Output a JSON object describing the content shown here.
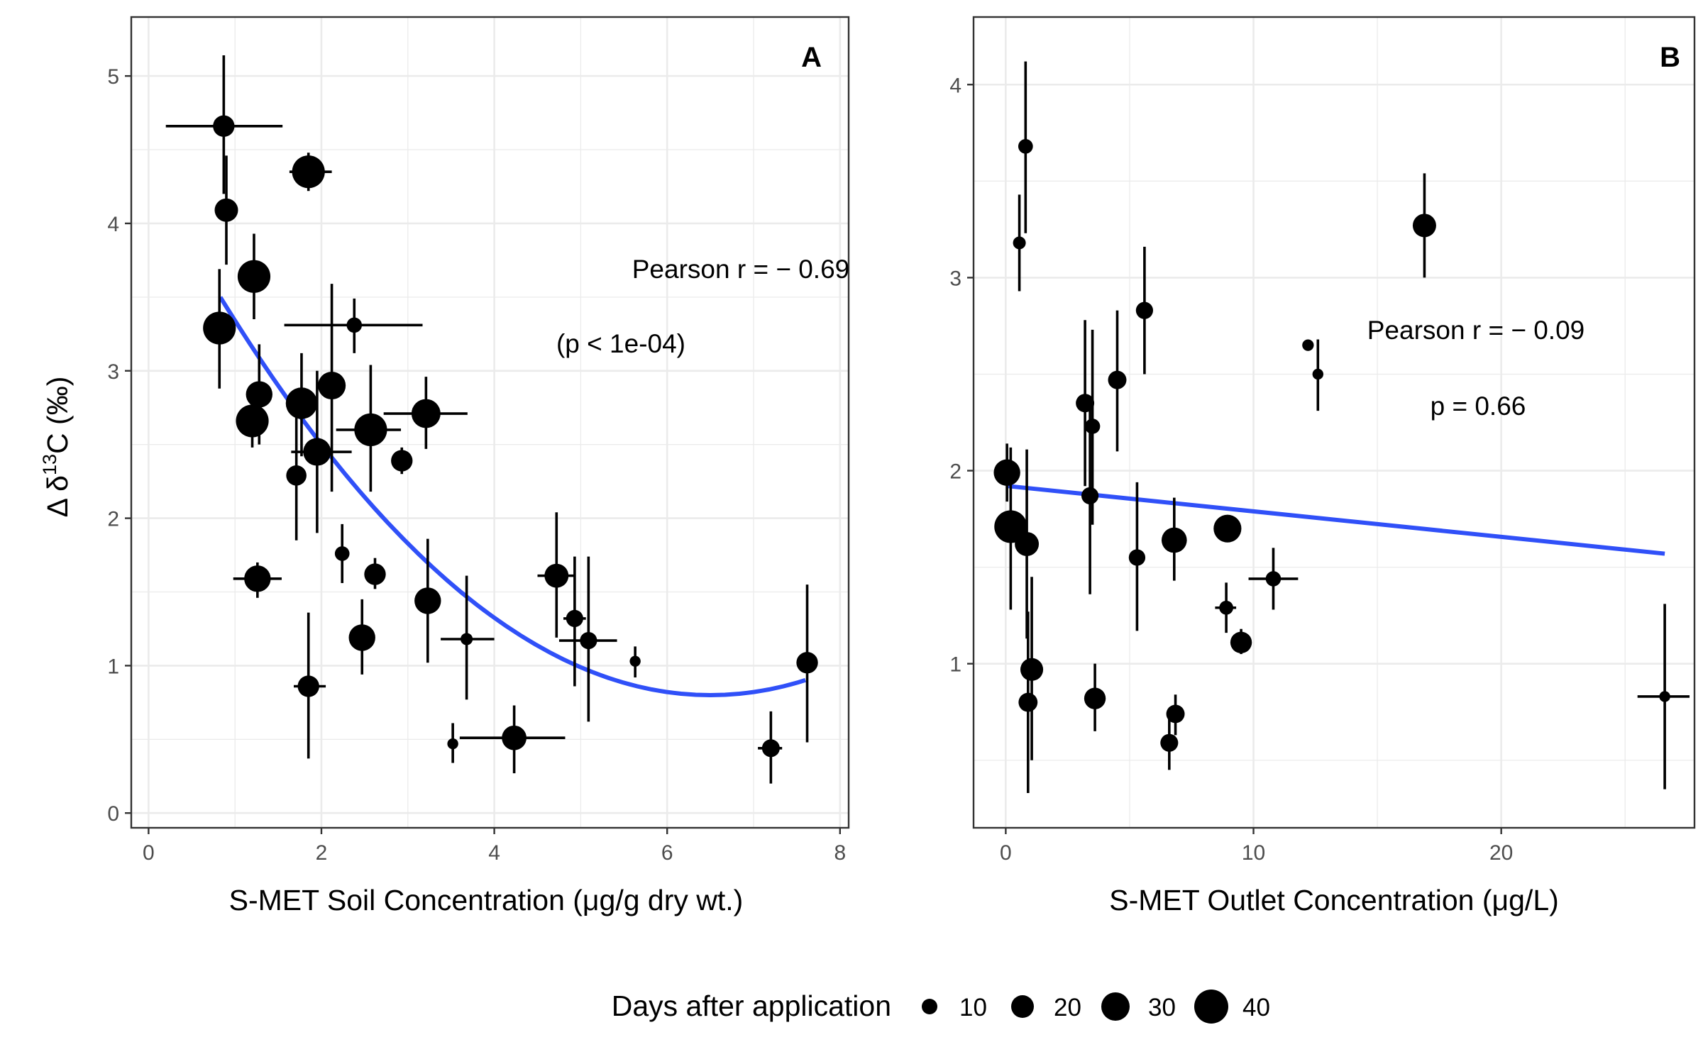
{
  "chart_data": [
    {
      "type": "scatter",
      "panel_tag": "A",
      "xlabel": "S-MET Soil Concentration  (μg/g dry wt.)",
      "ylabel_delta": "Δ δ",
      "ylabel_sup": "13",
      "ylabel_rest": "C (‰)",
      "xlim": [
        -0.2,
        8.1
      ],
      "ylim": [
        -0.1,
        5.4
      ],
      "xticks": [
        0,
        2,
        4,
        6,
        8
      ],
      "yticks": [
        0,
        1,
        2,
        3,
        4,
        5
      ],
      "xtick_labels": [
        "0",
        "2",
        "4",
        "6",
        "8"
      ],
      "ytick_labels": [
        "0",
        "1",
        "2",
        "3",
        "4",
        "5"
      ],
      "annotation_line1": "Pearson r = − 0.69",
      "annotation_line2": "(p < 1e-04)",
      "grid": true,
      "fit_color": "#3050f8",
      "fit": {
        "kind": "quadratic",
        "x_from": 0.83,
        "x_to": 7.6,
        "points": [
          [
            0.83,
            3.5
          ],
          [
            2.7,
            2.42
          ],
          [
            6.5,
            0.8
          ]
        ]
      },
      "points": [
        {
          "x": 0.87,
          "y": 4.66,
          "days": 22,
          "xerr": [
            0.2,
            1.55
          ],
          "yerr": [
            4.2,
            5.14
          ]
        },
        {
          "x": 1.85,
          "y": 4.35,
          "days": 40,
          "xerr": [
            1.63,
            2.12
          ],
          "yerr": [
            4.22,
            4.48
          ]
        },
        {
          "x": 0.9,
          "y": 4.09,
          "days": 25,
          "xerr": null,
          "yerr": [
            3.72,
            4.46
          ]
        },
        {
          "x": 1.22,
          "y": 3.64,
          "days": 40,
          "xerr": null,
          "yerr": [
            3.35,
            3.93
          ]
        },
        {
          "x": 0.82,
          "y": 3.29,
          "days": 40,
          "xerr": null,
          "yerr": [
            2.88,
            3.69
          ]
        },
        {
          "x": 2.38,
          "y": 3.31,
          "days": 12,
          "xerr": [
            1.57,
            3.17
          ],
          "yerr": [
            3.12,
            3.49
          ]
        },
        {
          "x": 1.28,
          "y": 2.84,
          "days": 30,
          "xerr": null,
          "yerr": [
            2.5,
            3.18
          ]
        },
        {
          "x": 2.12,
          "y": 2.9,
          "days": 32,
          "xerr": null,
          "yerr": [
            2.18,
            3.59
          ]
        },
        {
          "x": 1.77,
          "y": 2.78,
          "days": 38,
          "xerr": null,
          "yerr": [
            2.42,
            3.12
          ]
        },
        {
          "x": 1.2,
          "y": 2.66,
          "days": 40,
          "xerr": null,
          "yerr": [
            2.48,
            2.84
          ]
        },
        {
          "x": 1.95,
          "y": 2.45,
          "days": 32,
          "xerr": [
            1.65,
            2.35
          ],
          "yerr": [
            1.9,
            3.0
          ]
        },
        {
          "x": 2.57,
          "y": 2.6,
          "days": 40,
          "xerr": [
            2.17,
            2.92
          ],
          "yerr": [
            2.18,
            3.04
          ]
        },
        {
          "x": 3.21,
          "y": 2.71,
          "days": 34,
          "xerr": [
            2.72,
            3.69
          ],
          "yerr": [
            2.47,
            2.96
          ]
        },
        {
          "x": 2.93,
          "y": 2.39,
          "days": 22,
          "xerr": null,
          "yerr": [
            2.3,
            2.48
          ]
        },
        {
          "x": 1.71,
          "y": 2.29,
          "days": 20,
          "xerr": null,
          "yerr": [
            1.85,
            2.74
          ]
        },
        {
          "x": 2.24,
          "y": 1.76,
          "days": 11,
          "xerr": null,
          "yerr": [
            1.56,
            1.96
          ]
        },
        {
          "x": 2.62,
          "y": 1.62,
          "days": 22,
          "xerr": null,
          "yerr": [
            1.52,
            1.73
          ]
        },
        {
          "x": 1.26,
          "y": 1.59,
          "days": 30,
          "xerr": [
            0.98,
            1.54
          ],
          "yerr": [
            1.46,
            1.7
          ]
        },
        {
          "x": 3.23,
          "y": 1.44,
          "days": 30,
          "xerr": null,
          "yerr": [
            1.02,
            1.86
          ]
        },
        {
          "x": 3.68,
          "y": 1.18,
          "days": 7,
          "xerr": [
            3.38,
            4.0
          ],
          "yerr": [
            0.77,
            1.61
          ]
        },
        {
          "x": 2.47,
          "y": 1.19,
          "days": 30,
          "xerr": null,
          "yerr": [
            0.94,
            1.45
          ]
        },
        {
          "x": 4.72,
          "y": 1.61,
          "days": 26,
          "xerr": [
            4.5,
            4.92
          ],
          "yerr": [
            1.19,
            2.04
          ]
        },
        {
          "x": 4.93,
          "y": 1.32,
          "days": 15,
          "xerr": [
            4.8,
            5.06
          ],
          "yerr": [
            0.86,
            1.74
          ]
        },
        {
          "x": 5.09,
          "y": 1.17,
          "days": 15,
          "xerr": [
            4.75,
            5.42
          ],
          "yerr": [
            0.62,
            1.74
          ]
        },
        {
          "x": 5.63,
          "y": 1.03,
          "days": 5,
          "xerr": null,
          "yerr": [
            0.92,
            1.13
          ]
        },
        {
          "x": 1.85,
          "y": 0.86,
          "days": 22,
          "xerr": [
            1.68,
            2.05
          ],
          "yerr": [
            0.37,
            1.36
          ]
        },
        {
          "x": 4.23,
          "y": 0.51,
          "days": 27,
          "xerr": [
            3.6,
            4.82
          ],
          "yerr": [
            0.27,
            0.73
          ]
        },
        {
          "x": 3.52,
          "y": 0.47,
          "days": 5,
          "xerr": null,
          "yerr": [
            0.34,
            0.61
          ]
        },
        {
          "x": 7.2,
          "y": 0.44,
          "days": 16,
          "xerr": [
            7.05,
            7.33
          ],
          "yerr": [
            0.2,
            0.69
          ]
        },
        {
          "x": 7.62,
          "y": 1.02,
          "days": 22,
          "xerr": null,
          "yerr": [
            0.48,
            1.55
          ]
        }
      ]
    },
    {
      "type": "scatter",
      "panel_tag": "B",
      "xlabel": "S-MET Outlet Concentration (μg/L)",
      "xlim": [
        -1.3,
        27.8
      ],
      "ylim": [
        0.15,
        4.35
      ],
      "xticks": [
        0,
        10,
        20
      ],
      "yticks": [
        1,
        2,
        3,
        4
      ],
      "xtick_labels": [
        "0",
        "10",
        "20"
      ],
      "ytick_labels": [
        "1",
        "2",
        "3",
        "4"
      ],
      "annotation_line1": "Pearson r = − 0.09",
      "annotation_line2": "p = 0.66",
      "grid": true,
      "fit_color": "#3050f8",
      "fit": {
        "kind": "linear",
        "x_from": 0.1,
        "x_to": 26.6,
        "y_from": 1.92,
        "y_to": 1.57
      },
      "points": [
        {
          "x": 0.8,
          "y": 3.68,
          "days": 11,
          "xerr": null,
          "yerr": [
            3.23,
            4.12
          ]
        },
        {
          "x": 0.55,
          "y": 3.18,
          "days": 8,
          "xerr": null,
          "yerr": [
            2.93,
            3.43
          ]
        },
        {
          "x": 16.9,
          "y": 3.27,
          "days": 25,
          "xerr": null,
          "yerr": [
            3.0,
            3.54
          ]
        },
        {
          "x": 5.6,
          "y": 2.83,
          "days": 15,
          "xerr": null,
          "yerr": [
            2.5,
            3.16
          ]
        },
        {
          "x": 12.2,
          "y": 2.65,
          "days": 6,
          "xerr": null,
          "yerr": null
        },
        {
          "x": 12.6,
          "y": 2.5,
          "days": 5,
          "xerr": null,
          "yerr": [
            2.31,
            2.68
          ]
        },
        {
          "x": 4.5,
          "y": 2.47,
          "days": 17,
          "xerr": null,
          "yerr": [
            2.1,
            2.83
          ]
        },
        {
          "x": 3.2,
          "y": 2.35,
          "days": 17,
          "xerr": null,
          "yerr": [
            1.92,
            2.78
          ]
        },
        {
          "x": 3.5,
          "y": 2.23,
          "days": 12,
          "xerr": null,
          "yerr": [
            1.72,
            2.73
          ]
        },
        {
          "x": 0.05,
          "y": 1.99,
          "days": 30,
          "xerr": null,
          "yerr": [
            1.84,
            2.14
          ]
        },
        {
          "x": 3.4,
          "y": 1.87,
          "days": 15,
          "xerr": null,
          "yerr": [
            1.36,
            2.38
          ]
        },
        {
          "x": 0.2,
          "y": 1.71,
          "days": 40,
          "xerr": null,
          "yerr": [
            1.28,
            2.12
          ]
        },
        {
          "x": 0.85,
          "y": 1.62,
          "days": 26,
          "xerr": null,
          "yerr": [
            1.13,
            2.11
          ]
        },
        {
          "x": 5.3,
          "y": 1.55,
          "days": 14,
          "xerr": null,
          "yerr": [
            1.17,
            1.94
          ]
        },
        {
          "x": 6.8,
          "y": 1.64,
          "days": 28,
          "xerr": null,
          "yerr": [
            1.43,
            1.86
          ]
        },
        {
          "x": 8.95,
          "y": 1.7,
          "days": 32,
          "xerr": null,
          "yerr": null
        },
        {
          "x": 8.9,
          "y": 1.29,
          "days": 10,
          "xerr": [
            8.45,
            9.3
          ],
          "yerr": [
            1.16,
            1.42
          ]
        },
        {
          "x": 10.8,
          "y": 1.44,
          "days": 12,
          "xerr": [
            9.8,
            11.8
          ],
          "yerr": [
            1.28,
            1.6
          ]
        },
        {
          "x": 9.5,
          "y": 1.11,
          "days": 22,
          "xerr": null,
          "yerr": [
            1.05,
            1.18
          ]
        },
        {
          "x": 1.05,
          "y": 0.97,
          "days": 24,
          "xerr": null,
          "yerr": [
            0.5,
            1.45
          ]
        },
        {
          "x": 0.9,
          "y": 0.8,
          "days": 18,
          "xerr": null,
          "yerr": [
            0.33,
            1.27
          ]
        },
        {
          "x": 3.6,
          "y": 0.82,
          "days": 22,
          "xerr": null,
          "yerr": [
            0.65,
            1.0
          ]
        },
        {
          "x": 6.85,
          "y": 0.74,
          "days": 17,
          "xerr": null,
          "yerr": [
            0.63,
            0.84
          ]
        },
        {
          "x": 6.6,
          "y": 0.59,
          "days": 16,
          "xerr": null,
          "yerr": [
            0.45,
            0.72
          ]
        },
        {
          "x": 26.6,
          "y": 0.83,
          "days": 5,
          "xerr": [
            25.5,
            27.6
          ],
          "yerr": [
            0.35,
            1.31
          ]
        }
      ]
    }
  ],
  "legend": {
    "title": "Days after application",
    "placement": "bottom",
    "entries": [
      {
        "label": "10",
        "days": 10
      },
      {
        "label": "20",
        "days": 20
      },
      {
        "label": "30",
        "days": 30
      },
      {
        "label": "40",
        "days": 40
      }
    ]
  },
  "colors": {
    "points": "#000000",
    "fit": "#3050f8",
    "grid": "#ebebeb",
    "panel_border": "#333333"
  }
}
